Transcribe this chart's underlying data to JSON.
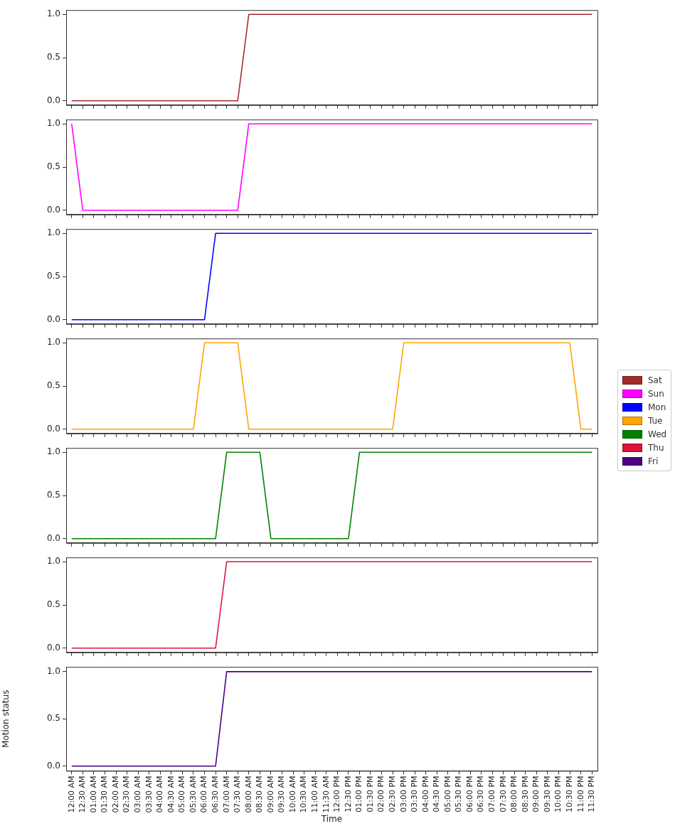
{
  "chart_data": [
    {
      "type": "line",
      "categories": [
        null,
        null,
        null,
        null,
        null,
        null,
        null,
        null,
        null,
        null,
        null,
        null,
        null,
        null,
        null,
        null,
        null,
        null,
        null,
        null,
        null,
        null,
        null,
        null,
        null,
        null,
        null,
        null,
        null,
        null,
        null,
        null,
        null,
        null,
        null,
        null,
        null,
        null,
        null,
        null,
        null,
        null,
        null,
        null,
        null,
        null,
        null,
        null
      ],
      "series": [
        {
          "name": "Sat",
          "color": "#a52a2a",
          "values": [
            0,
            0,
            0,
            0,
            0,
            0,
            0,
            0,
            0,
            0,
            0,
            0,
            0,
            0,
            0,
            0,
            1,
            1,
            1,
            1,
            1,
            1,
            1,
            1,
            1,
            1,
            1,
            1,
            1,
            1,
            1,
            1,
            1,
            1,
            1,
            1,
            1,
            1,
            1,
            1,
            1,
            1,
            1,
            1,
            1,
            1,
            1,
            1
          ]
        }
      ],
      "ylim": [
        -0.05,
        1.05
      ],
      "yticks": [
        {
          "value": 0,
          "label": "0.0"
        },
        {
          "value": 0.5,
          "label": "0.5"
        },
        {
          "value": 1,
          "label": "1.0"
        }
      ],
      "tick_labels": "y",
      "legend": "right",
      "grid": false
    },
    {
      "type": "line",
      "categories": [
        null,
        null,
        null,
        null,
        null,
        null,
        null,
        null,
        null,
        null,
        null,
        null,
        null,
        null,
        null,
        null,
        null,
        null,
        null,
        null,
        null,
        null,
        null,
        null,
        null,
        null,
        null,
        null,
        null,
        null,
        null,
        null,
        null,
        null,
        null,
        null,
        null,
        null,
        null,
        null,
        null,
        null,
        null,
        null,
        null,
        null,
        null,
        null
      ],
      "series": [
        {
          "name": "Sun",
          "color": "#ff00ff",
          "values": [
            1,
            0,
            0,
            0,
            0,
            0,
            0,
            0,
            0,
            0,
            0,
            0,
            0,
            0,
            0,
            0,
            1,
            1,
            1,
            1,
            1,
            1,
            1,
            1,
            1,
            1,
            1,
            1,
            1,
            1,
            1,
            1,
            1,
            1,
            1,
            1,
            1,
            1,
            1,
            1,
            1,
            1,
            1,
            1,
            1,
            1,
            1,
            1
          ]
        }
      ],
      "ylim": [
        -0.05,
        1.05
      ],
      "yticks": [
        {
          "value": 0,
          "label": "0.0"
        },
        {
          "value": 0.5,
          "label": "0.5"
        },
        {
          "value": 1,
          "label": "1.0"
        }
      ],
      "tick_labels": "y",
      "legend": "right",
      "grid": false
    },
    {
      "type": "line",
      "categories": [
        null,
        null,
        null,
        null,
        null,
        null,
        null,
        null,
        null,
        null,
        null,
        null,
        null,
        null,
        null,
        null,
        null,
        null,
        null,
        null,
        null,
        null,
        null,
        null,
        null,
        null,
        null,
        null,
        null,
        null,
        null,
        null,
        null,
        null,
        null,
        null,
        null,
        null,
        null,
        null,
        null,
        null,
        null,
        null,
        null,
        null,
        null,
        null
      ],
      "series": [
        {
          "name": "Mon",
          "color": "#0000ff",
          "values": [
            0,
            0,
            0,
            0,
            0,
            0,
            0,
            0,
            0,
            0,
            0,
            0,
            0,
            1,
            1,
            1,
            1,
            1,
            1,
            1,
            1,
            1,
            1,
            1,
            1,
            1,
            1,
            1,
            1,
            1,
            1,
            1,
            1,
            1,
            1,
            1,
            1,
            1,
            1,
            1,
            1,
            1,
            1,
            1,
            1,
            1,
            1,
            1
          ]
        }
      ],
      "ylim": [
        -0.05,
        1.05
      ],
      "yticks": [
        {
          "value": 0,
          "label": "0.0"
        },
        {
          "value": 0.5,
          "label": "0.5"
        },
        {
          "value": 1,
          "label": "1.0"
        }
      ],
      "tick_labels": "y",
      "legend": "right",
      "grid": false
    },
    {
      "type": "line",
      "categories": [
        null,
        null,
        null,
        null,
        null,
        null,
        null,
        null,
        null,
        null,
        null,
        null,
        null,
        null,
        null,
        null,
        null,
        null,
        null,
        null,
        null,
        null,
        null,
        null,
        null,
        null,
        null,
        null,
        null,
        null,
        null,
        null,
        null,
        null,
        null,
        null,
        null,
        null,
        null,
        null,
        null,
        null,
        null,
        null,
        null,
        null,
        null,
        null
      ],
      "series": [
        {
          "name": "Tue",
          "color": "#ffa500",
          "values": [
            0,
            0,
            0,
            0,
            0,
            0,
            0,
            0,
            0,
            0,
            0,
            0,
            1,
            1,
            1,
            1,
            0,
            0,
            0,
            0,
            0,
            0,
            0,
            0,
            0,
            0,
            0,
            0,
            0,
            0,
            1,
            1,
            1,
            1,
            1,
            1,
            1,
            1,
            1,
            1,
            1,
            1,
            1,
            1,
            1,
            1,
            0,
            0
          ]
        }
      ],
      "ylim": [
        -0.05,
        1.05
      ],
      "yticks": [
        {
          "value": 0,
          "label": "0.0"
        },
        {
          "value": 0.5,
          "label": "0.5"
        },
        {
          "value": 1,
          "label": "1.0"
        }
      ],
      "tick_labels": "y",
      "legend": "right",
      "grid": false
    },
    {
      "type": "line",
      "categories": [
        null,
        null,
        null,
        null,
        null,
        null,
        null,
        null,
        null,
        null,
        null,
        null,
        null,
        null,
        null,
        null,
        null,
        null,
        null,
        null,
        null,
        null,
        null,
        null,
        null,
        null,
        null,
        null,
        null,
        null,
        null,
        null,
        null,
        null,
        null,
        null,
        null,
        null,
        null,
        null,
        null,
        null,
        null,
        null,
        null,
        null,
        null,
        null
      ],
      "series": [
        {
          "name": "Wed",
          "color": "#008000",
          "values": [
            0,
            0,
            0,
            0,
            0,
            0,
            0,
            0,
            0,
            0,
            0,
            0,
            0,
            0,
            1,
            1,
            1,
            1,
            0,
            0,
            0,
            0,
            0,
            0,
            0,
            0,
            1,
            1,
            1,
            1,
            1,
            1,
            1,
            1,
            1,
            1,
            1,
            1,
            1,
            1,
            1,
            1,
            1,
            1,
            1,
            1,
            1,
            1
          ]
        }
      ],
      "ylim": [
        -0.05,
        1.05
      ],
      "yticks": [
        {
          "value": 0,
          "label": "0.0"
        },
        {
          "value": 0.5,
          "label": "0.5"
        },
        {
          "value": 1,
          "label": "1.0"
        }
      ],
      "tick_labels": "y",
      "legend": "right",
      "grid": false
    },
    {
      "type": "line",
      "categories": [
        null,
        null,
        null,
        null,
        null,
        null,
        null,
        null,
        null,
        null,
        null,
        null,
        null,
        null,
        null,
        null,
        null,
        null,
        null,
        null,
        null,
        null,
        null,
        null,
        null,
        null,
        null,
        null,
        null,
        null,
        null,
        null,
        null,
        null,
        null,
        null,
        null,
        null,
        null,
        null,
        null,
        null,
        null,
        null,
        null,
        null,
        null,
        null
      ],
      "series": [
        {
          "name": "Thu",
          "color": "#dc143c",
          "values": [
            0,
            0,
            0,
            0,
            0,
            0,
            0,
            0,
            0,
            0,
            0,
            0,
            0,
            0,
            1,
            1,
            1,
            1,
            1,
            1,
            1,
            1,
            1,
            1,
            1,
            1,
            1,
            1,
            1,
            1,
            1,
            1,
            1,
            1,
            1,
            1,
            1,
            1,
            1,
            1,
            1,
            1,
            1,
            1,
            1,
            1,
            1,
            1
          ]
        }
      ],
      "ylim": [
        -0.05,
        1.05
      ],
      "yticks": [
        {
          "value": 0,
          "label": "0.0"
        },
        {
          "value": 0.5,
          "label": "0.5"
        },
        {
          "value": 1,
          "label": "1.0"
        }
      ],
      "tick_labels": "y",
      "legend": "right",
      "grid": false
    },
    {
      "type": "line",
      "xlabel": "Time",
      "ylabel": "Motion status",
      "categories": [
        "12:00 AM",
        "12:30 AM",
        "01:00 AM",
        "01:30 AM",
        "02:00 AM",
        "02:30 AM",
        "03:00 AM",
        "03:30 AM",
        "04:00 AM",
        "04:30 AM",
        "05:00 AM",
        "05:30 AM",
        "06:00 AM",
        "06:30 AM",
        "07:00 AM",
        "07:30 AM",
        "08:00 AM",
        "08:30 AM",
        "09:00 AM",
        "09:30 AM",
        "10:00 AM",
        "10:30 AM",
        "11:00 AM",
        "11:30 AM",
        "12:00 PM",
        "12:30 PM",
        "01:00 PM",
        "01:30 PM",
        "02:00 PM",
        "02:30 PM",
        "03:00 PM",
        "03:30 PM",
        "04:00 PM",
        "04:30 PM",
        "05:00 PM",
        "05:30 PM",
        "06:00 PM",
        "06:30 PM",
        "07:00 PM",
        "07:30 PM",
        "08:00 PM",
        "08:30 PM",
        "09:00 PM",
        "09:30 PM",
        "10:00 PM",
        "10:30 PM",
        "11:00 PM",
        "11:30 PM"
      ],
      "series": [
        {
          "name": "Fri",
          "color": "#4b0082",
          "values": [
            0,
            0,
            0,
            0,
            0,
            0,
            0,
            0,
            0,
            0,
            0,
            0,
            0,
            0,
            1,
            1,
            1,
            1,
            1,
            1,
            1,
            1,
            1,
            1,
            1,
            1,
            1,
            1,
            1,
            1,
            1,
            1,
            1,
            1,
            1,
            1,
            1,
            1,
            1,
            1,
            1,
            1,
            1,
            1,
            1,
            1,
            1,
            1
          ]
        }
      ],
      "ylim": [
        -0.05,
        1.05
      ],
      "yticks": [
        {
          "value": 0,
          "label": "0.0"
        },
        {
          "value": 0.5,
          "label": "0.5"
        },
        {
          "value": 1,
          "label": "1.0"
        }
      ],
      "legend": "right",
      "grid": false
    }
  ]
}
